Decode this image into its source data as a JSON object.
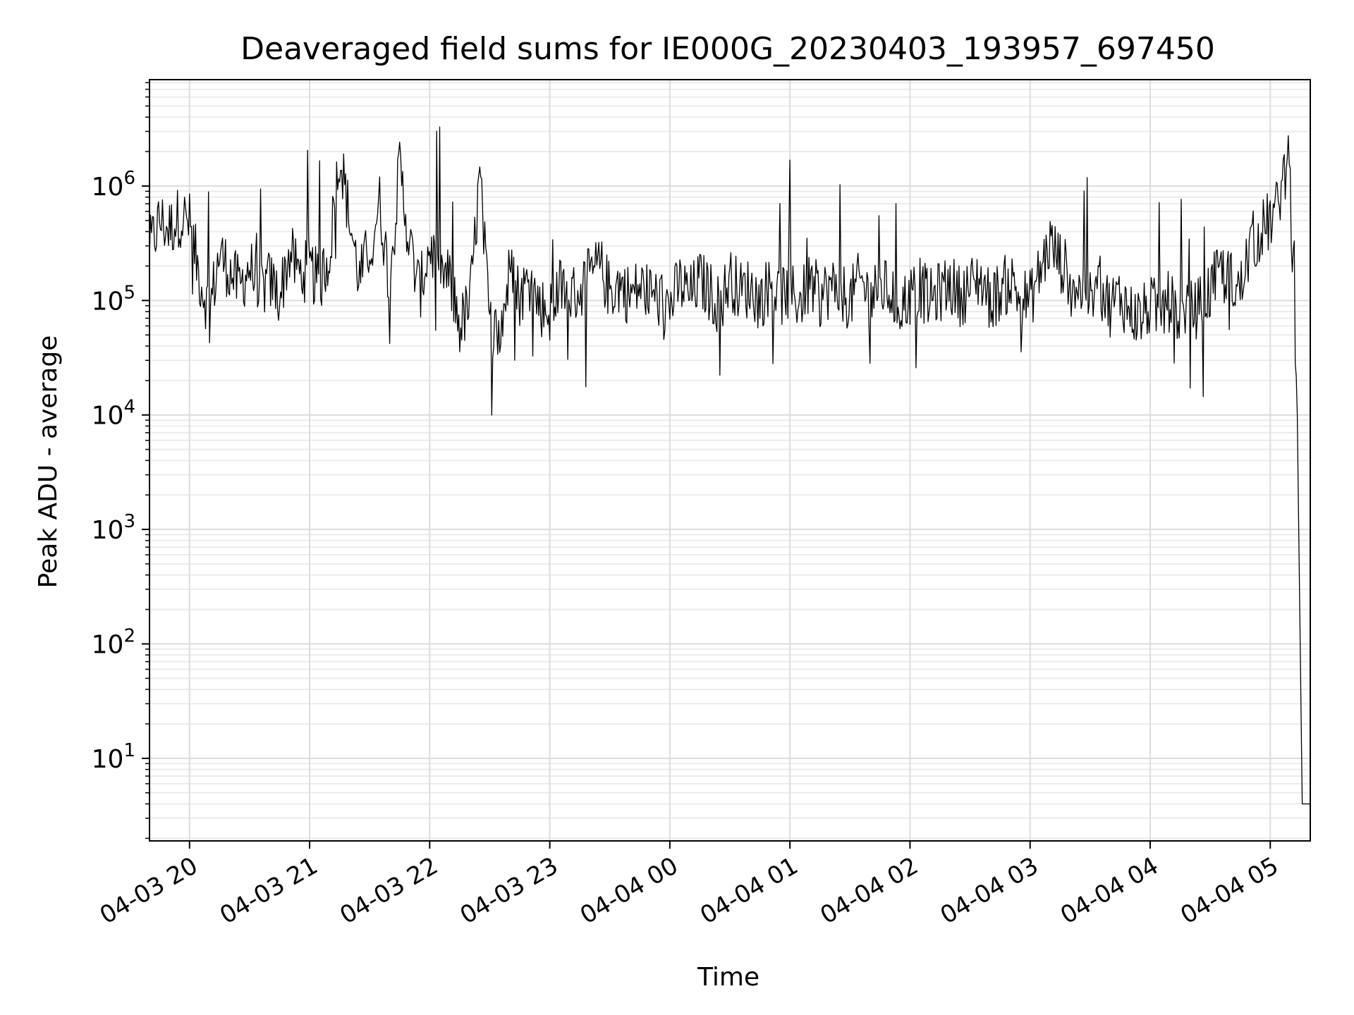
{
  "chart_data": {
    "type": "line",
    "title": "Deaveraged field sums for IE000G_20230403_193957_697450",
    "xlabel": "Time",
    "ylabel": "Peak ADU - average",
    "yscale": "log",
    "xlim": [
      "2023-04-03 19:40",
      "2023-04-04 05:20"
    ],
    "ylim": [
      1.9,
      8500000
    ],
    "grid": true,
    "grid_minor": true,
    "x_ticks": [
      {
        "value": "2023-04-03 20:00",
        "label": "04-03 20"
      },
      {
        "value": "2023-04-03 21:00",
        "label": "04-03 21"
      },
      {
        "value": "2023-04-03 22:00",
        "label": "04-03 22"
      },
      {
        "value": "2023-04-03 23:00",
        "label": "04-03 23"
      },
      {
        "value": "2023-04-04 00:00",
        "label": "04-04 00"
      },
      {
        "value": "2023-04-04 01:00",
        "label": "04-04 01"
      },
      {
        "value": "2023-04-04 02:00",
        "label": "04-04 02"
      },
      {
        "value": "2023-04-04 03:00",
        "label": "04-04 03"
      },
      {
        "value": "2023-04-04 04:00",
        "label": "04-04 04"
      },
      {
        "value": "2023-04-04 05:00",
        "label": "04-04 05"
      }
    ],
    "y_ticks": [
      {
        "value": 10,
        "base": "10",
        "exp": "1"
      },
      {
        "value": 100,
        "base": "10",
        "exp": "2"
      },
      {
        "value": 1000,
        "base": "10",
        "exp": "3"
      },
      {
        "value": 10000,
        "base": "10",
        "exp": "4"
      },
      {
        "value": 100000,
        "base": "10",
        "exp": "5"
      },
      {
        "value": 1000000,
        "base": "10",
        "exp": "6"
      }
    ],
    "series": [
      {
        "color": "#000000",
        "x": [
          "2023-04-03 19:40",
          "2023-04-03 19:45",
          "2023-04-03 19:50",
          "2023-04-03 19:55",
          "2023-04-03 20:00",
          "2023-04-03 20:05",
          "2023-04-03 20:10",
          "2023-04-03 20:15",
          "2023-04-03 20:20",
          "2023-04-03 20:25",
          "2023-04-03 20:30",
          "2023-04-03 20:35",
          "2023-04-03 20:40",
          "2023-04-03 20:45",
          "2023-04-03 20:50",
          "2023-04-03 20:55",
          "2023-04-03 21:00",
          "2023-04-03 21:05",
          "2023-04-03 21:10",
          "2023-04-03 21:15",
          "2023-04-03 21:20",
          "2023-04-03 21:25",
          "2023-04-03 21:30",
          "2023-04-03 21:35",
          "2023-04-03 21:40",
          "2023-04-03 21:45",
          "2023-04-03 21:50",
          "2023-04-03 21:55",
          "2023-04-03 22:00",
          "2023-04-03 22:05",
          "2023-04-03 22:10",
          "2023-04-03 22:15",
          "2023-04-03 22:20",
          "2023-04-03 22:25",
          "2023-04-03 22:30",
          "2023-04-03 22:35",
          "2023-04-03 22:40",
          "2023-04-03 22:45",
          "2023-04-03 22:50",
          "2023-04-03 22:55",
          "2023-04-03 23:00",
          "2023-04-03 23:05",
          "2023-04-03 23:10",
          "2023-04-03 23:15",
          "2023-04-03 23:20",
          "2023-04-03 23:25",
          "2023-04-03 23:30",
          "2023-04-03 23:35",
          "2023-04-03 23:40",
          "2023-04-03 23:45",
          "2023-04-03 23:50",
          "2023-04-03 23:55",
          "2023-04-04 00:00",
          "2023-04-04 00:05",
          "2023-04-04 00:10",
          "2023-04-04 00:15",
          "2023-04-04 00:20",
          "2023-04-04 00:25",
          "2023-04-04 00:30",
          "2023-04-04 00:35",
          "2023-04-04 00:40",
          "2023-04-04 00:45",
          "2023-04-04 00:50",
          "2023-04-04 00:55",
          "2023-04-04 01:00",
          "2023-04-04 01:05",
          "2023-04-04 01:10",
          "2023-04-04 01:15",
          "2023-04-04 01:20",
          "2023-04-04 01:25",
          "2023-04-04 01:30",
          "2023-04-04 01:35",
          "2023-04-04 01:40",
          "2023-04-04 01:45",
          "2023-04-04 01:50",
          "2023-04-04 01:55",
          "2023-04-04 02:00",
          "2023-04-04 02:05",
          "2023-04-04 02:10",
          "2023-04-04 02:15",
          "2023-04-04 02:20",
          "2023-04-04 02:25",
          "2023-04-04 02:30",
          "2023-04-04 02:35",
          "2023-04-04 02:40",
          "2023-04-04 02:45",
          "2023-04-04 02:50",
          "2023-04-04 02:55",
          "2023-04-04 03:00",
          "2023-04-04 03:05",
          "2023-04-04 03:10",
          "2023-04-04 03:15",
          "2023-04-04 03:20",
          "2023-04-04 03:25",
          "2023-04-04 03:30",
          "2023-04-04 03:35",
          "2023-04-04 03:40",
          "2023-04-04 03:45",
          "2023-04-04 03:50",
          "2023-04-04 03:55",
          "2023-04-04 04:00",
          "2023-04-04 04:05",
          "2023-04-04 04:10",
          "2023-04-04 04:15",
          "2023-04-04 04:20",
          "2023-04-04 04:25",
          "2023-04-04 04:30",
          "2023-04-04 04:35",
          "2023-04-04 04:40",
          "2023-04-04 04:45",
          "2023-04-04 04:50",
          "2023-04-04 04:55",
          "2023-04-04 05:00",
          "2023-04-04 05:03",
          "2023-04-04 05:05",
          "2023-04-04 05:07",
          "2023-04-04 05:09",
          "2023-04-04 05:10",
          "2023-04-04 05:11",
          "2023-04-04 05:12",
          "2023-04-04 05:13",
          "2023-04-04 05:14",
          "2023-04-04 05:16",
          "2023-04-04 05:18",
          "2023-04-04 05:20"
        ],
        "y": [
          280000,
          500000,
          420000,
          550000,
          480000,
          160000,
          80000,
          260000,
          180000,
          130000,
          200000,
          120000,
          150000,
          110000,
          260000,
          170000,
          190000,
          140000,
          260000,
          2000000,
          500000,
          150000,
          300000,
          700000,
          140000,
          1500000,
          300000,
          120000,
          300000,
          180000,
          150000,
          60000,
          90000,
          1200000,
          60000,
          50000,
          180000,
          110000,
          150000,
          90000,
          80000,
          130000,
          110000,
          120000,
          160000,
          200000,
          120000,
          140000,
          110000,
          130000,
          120000,
          100000,
          90000,
          140000,
          110000,
          150000,
          120000,
          90000,
          160000,
          120000,
          130000,
          100000,
          140000,
          110000,
          120000,
          100000,
          140000,
          110000,
          130000,
          120000,
          100000,
          150000,
          110000,
          130000,
          120000,
          90000,
          110000,
          130000,
          100000,
          120000,
          140000,
          110000,
          130000,
          160000,
          100000,
          120000,
          150000,
          110000,
          100000,
          180000,
          320000,
          220000,
          160000,
          120000,
          100000,
          130000,
          90000,
          110000,
          80000,
          70000,
          90000,
          80000,
          100000,
          70000,
          80000,
          90000,
          120000,
          180000,
          150000,
          120000,
          300000,
          400000,
          500000,
          600000,
          900000,
          1300000,
          1200000,
          800000,
          300000,
          80000,
          15000,
          2000,
          4,
          4,
          4
        ]
      }
    ]
  }
}
